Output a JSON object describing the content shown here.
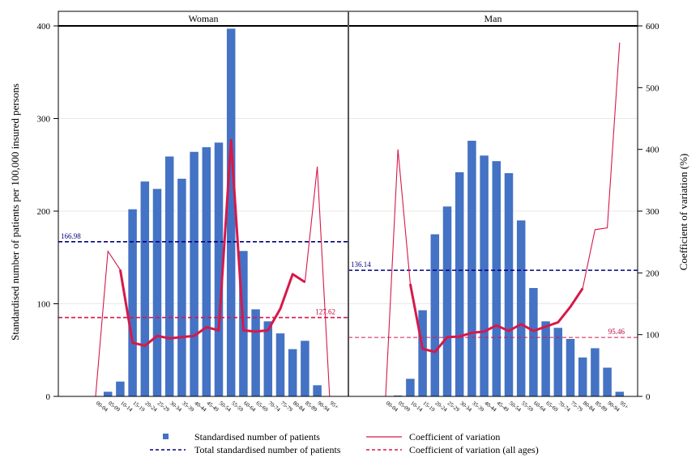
{
  "chart_data": {
    "type": "bar",
    "ylabel_left": "Standardised number of patients per 100,000 insured persons",
    "ylabel_right": "Coefficient of variation (%)",
    "ylim_left": [
      0,
      400
    ],
    "ylim_right": [
      0,
      600
    ],
    "yticks_left": [
      "0",
      "100",
      "200",
      "300",
      "400"
    ],
    "yticks_right": [
      "0",
      "100",
      "200",
      "300",
      "400",
      "500",
      "600"
    ],
    "grid": "horizontal",
    "categories": [
      "00-04",
      "05-09",
      "10-14",
      "15-19",
      "20-24",
      "25-29",
      "30-34",
      "35-39",
      "40-44",
      "45-49",
      "50-54",
      "55-59",
      "60-64",
      "65-69",
      "70-74",
      "75-79",
      "80-84",
      "85-89",
      "90-94",
      "95+"
    ],
    "panels": [
      {
        "title": "Woman",
        "bars": [
          0,
          5,
          16,
          202,
          232,
          224,
          259,
          235,
          264,
          269,
          274,
          397,
          157,
          94,
          81,
          68,
          51,
          60,
          12,
          0
        ],
        "cv": [
          0,
          235,
          205,
          87,
          82,
          98,
          94,
          96,
          98,
          112,
          107,
          415,
          107,
          105,
          107,
          142,
          198,
          185,
          372,
          0
        ],
        "cv_bold_range": [
          2,
          17
        ],
        "total_value": 166.98,
        "total_label": "166.98",
        "cv_all_value": 127.62,
        "cv_all_label": "127.62"
      },
      {
        "title": "Man",
        "bars": [
          0,
          1,
          19,
          93,
          175,
          205,
          242,
          276,
          260,
          254,
          241,
          190,
          117,
          81,
          74,
          62,
          42,
          52,
          31,
          5
        ],
        "cv": [
          0,
          400,
          182,
          77,
          72,
          96,
          97,
          103,
          105,
          115,
          106,
          117,
          106,
          113,
          120,
          145,
          175,
          270,
          273,
          573
        ],
        "cv_bold_range": [
          2,
          16
        ],
        "total_value": 136.14,
        "total_label": "136.14",
        "cv_all_value": 95.46,
        "cv_all_label": "95.46"
      }
    ],
    "legend": [
      {
        "label": "Standardised number of patients",
        "kind": "square",
        "color": "#4472C4"
      },
      {
        "label": "Coefficient of variation",
        "kind": "line",
        "color": "#D6194A"
      },
      {
        "label": "Total standardised number of patients",
        "kind": "dash",
        "color": "#000080"
      },
      {
        "label": "Coefficient of variation (all ages)",
        "kind": "dash",
        "color": "#D6194A"
      }
    ],
    "legend_placement": "bottom",
    "colors": {
      "bar": "#4472C4",
      "cv": "#D6194A",
      "total": "#000080",
      "cv_all": "#C0003A",
      "grid": "#E8E8E8"
    }
  }
}
